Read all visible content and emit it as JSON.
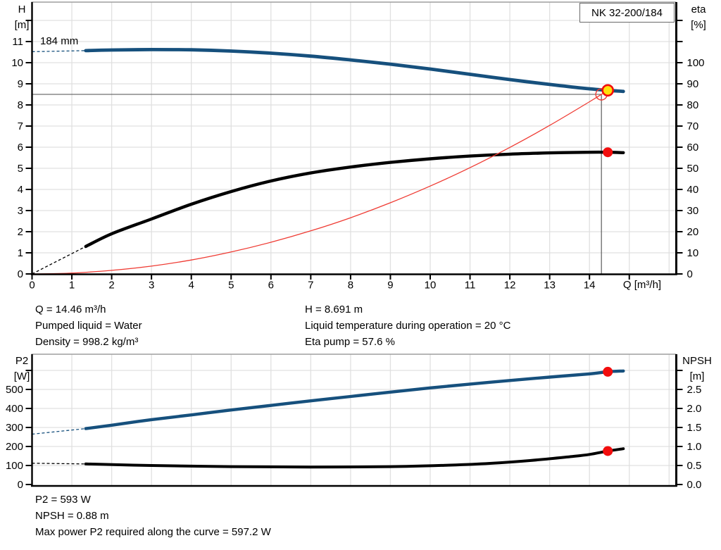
{
  "pump_title": "NK 32-200/184",
  "colors": {
    "blue": "#16507d",
    "black": "#000000",
    "red": "#ef3b33",
    "marker_red": "#f20d0d",
    "marker_yellow": "#ffe10a",
    "grid": "#e0e0e0",
    "frame": "#9e9e9e",
    "crosshair": "#4d4d4d",
    "axis": "#000000"
  },
  "info_top": {
    "left": [
      "Q = 14.46 m³/h",
      "Pumped liquid = Water",
      "Density = 998.2 kg/m³"
    ],
    "right": [
      "H = 8.691 m",
      "Liquid temperature during operation = 20 °C",
      "Eta pump = 57.6 %"
    ]
  },
  "info_bottom": [
    "P2 = 593 W",
    "NPSH = 0.88 m",
    "Max power P2 required along the curve = 597.2 W"
  ],
  "chart_data": [
    {
      "type": "line",
      "name": "head-eta-chart",
      "title": "NK 32-200/184",
      "annotation": "184 mm",
      "xlabel": "Q [m³/h]",
      "ylabel_left": [
        "H",
        "[m]"
      ],
      "ylabel_right": [
        "eta",
        "[%]"
      ],
      "x_range": [
        0,
        16.2
      ],
      "y_left_range": [
        0,
        12.9
      ],
      "y_right_range": [
        0,
        129
      ],
      "x_grid_values": [
        1,
        2,
        3,
        4,
        5,
        6,
        7,
        8,
        9,
        10,
        11,
        12,
        13,
        14,
        15,
        16
      ],
      "x_ticks_values": [
        0,
        1,
        2,
        3,
        4,
        5,
        6,
        7,
        8,
        9,
        10,
        11,
        12,
        13,
        14,
        15
      ],
      "x_ticks_labels": [
        "0",
        "1",
        "2",
        "3",
        "4",
        "5",
        "6",
        "7",
        "8",
        "9",
        "10",
        "11",
        "12",
        "13",
        "14",
        ""
      ],
      "y_left_ticks_values": [
        0,
        1,
        2,
        3,
        4,
        5,
        6,
        7,
        8,
        9,
        10,
        11,
        12
      ],
      "y_left_ticks_labels": [
        "0",
        "1",
        "2",
        "3",
        "4",
        "5",
        "6",
        "7",
        "8",
        "9",
        "10",
        "11",
        ""
      ],
      "y_right_ticks_values": [
        0,
        10,
        20,
        30,
        40,
        50,
        60,
        70,
        80,
        90,
        100,
        110,
        120
      ],
      "y_right_ticks_labels": [
        "0",
        "10",
        "20",
        "30",
        "40",
        "50",
        "60",
        "70",
        "80",
        "90",
        "100",
        "",
        ""
      ],
      "crosshair": {
        "q": 14.3,
        "value": 8.5
      },
      "series": [
        {
          "name": "eta-curve",
          "axis": "right",
          "color": "black",
          "width": 4.4,
          "dash": [
            [
              0,
              0
            ],
            [
              1.35,
              13
            ]
          ],
          "points": [
            [
              1.35,
              13
            ],
            [
              2,
              19
            ],
            [
              3,
              26
            ],
            [
              4,
              33
            ],
            [
              5,
              39
            ],
            [
              6,
              44
            ],
            [
              7,
              47.8
            ],
            [
              8,
              50.6
            ],
            [
              9,
              52.8
            ],
            [
              10,
              54.5
            ],
            [
              11,
              55.8
            ],
            [
              12,
              56.7
            ],
            [
              13,
              57.3
            ],
            [
              14,
              57.6
            ],
            [
              14.46,
              57.6
            ],
            [
              14.85,
              57.4
            ]
          ]
        },
        {
          "name": "system-curve",
          "axis": "left",
          "color": "red",
          "width": 1.3,
          "points": [
            [
              0,
              0
            ],
            [
              1,
              0.04
            ],
            [
              2,
              0.17
            ],
            [
              3,
              0.37
            ],
            [
              4,
              0.66
            ],
            [
              5,
              1.04
            ],
            [
              6,
              1.5
            ],
            [
              7,
              2.04
            ],
            [
              8,
              2.66
            ],
            [
              9,
              3.37
            ],
            [
              10,
              4.16
            ],
            [
              11,
              5.03
            ],
            [
              12,
              5.99
            ],
            [
              13,
              7.03
            ],
            [
              14,
              8.15
            ],
            [
              14.46,
              8.69
            ]
          ]
        },
        {
          "name": "head-curve",
          "axis": "left",
          "color": "blue",
          "width": 4.8,
          "dash": [
            [
              0,
              10.52
            ],
            [
              1.35,
              10.57
            ]
          ],
          "points": [
            [
              1.35,
              10.57
            ],
            [
              2,
              10.6
            ],
            [
              3,
              10.62
            ],
            [
              4,
              10.61
            ],
            [
              5,
              10.55
            ],
            [
              6,
              10.45
            ],
            [
              7,
              10.31
            ],
            [
              8,
              10.13
            ],
            [
              9,
              9.93
            ],
            [
              10,
              9.7
            ],
            [
              11,
              9.45
            ],
            [
              12,
              9.2
            ],
            [
              13,
              8.97
            ],
            [
              13.8,
              8.8
            ],
            [
              14.46,
              8.691
            ],
            [
              14.85,
              8.64
            ]
          ]
        }
      ],
      "markers": [
        {
          "name": "requested-duty-point",
          "q": 14.3,
          "value": 8.5,
          "axis": "left",
          "style": "open",
          "stroke": "red",
          "r": 8
        },
        {
          "name": "duty-point",
          "q": 14.46,
          "value": 8.691,
          "axis": "left",
          "style": "filled",
          "fill": "marker_yellow",
          "stroke": "marker_red",
          "r": 7.5
        },
        {
          "name": "eta-duty-point",
          "q": 14.46,
          "value": 57.6,
          "axis": "right",
          "style": "filled",
          "fill": "marker_red",
          "r": 7
        }
      ]
    },
    {
      "type": "line",
      "name": "power-npsh-chart",
      "xlabel": "",
      "ylabel_left": [
        "P2",
        "[W]"
      ],
      "ylabel_right": [
        "NPSH",
        "[m]"
      ],
      "x_range": [
        0,
        16.2
      ],
      "y_left_range": [
        0,
        685
      ],
      "y_right_range": [
        0,
        3.42
      ],
      "x_grid_values": [
        1,
        2,
        3,
        4,
        5,
        6,
        7,
        8,
        9,
        10,
        11,
        12,
        13,
        14,
        15,
        16
      ],
      "x_ticks_values": [],
      "x_ticks_labels": [],
      "y_left_ticks_values": [
        0,
        100,
        200,
        300,
        400,
        500,
        600
      ],
      "y_left_ticks_labels": [
        "0",
        "100",
        "200",
        "300",
        "400",
        "500",
        ""
      ],
      "y_right_ticks_values": [
        0,
        0.5,
        1,
        1.5,
        2,
        2.5,
        3
      ],
      "y_right_ticks_labels": [
        "0.0",
        "0.5",
        "1.0",
        "1.5",
        "2.0",
        "2.5",
        ""
      ],
      "series": [
        {
          "name": "npsh-curve",
          "axis": "right",
          "color": "black",
          "width": 4,
          "dash": [
            [
              0,
              0.56
            ],
            [
              1.35,
              0.54
            ]
          ],
          "points": [
            [
              1.35,
              0.54
            ],
            [
              3,
              0.5
            ],
            [
              5,
              0.47
            ],
            [
              7,
              0.46
            ],
            [
              9,
              0.47
            ],
            [
              10.5,
              0.51
            ],
            [
              11.5,
              0.555
            ],
            [
              12.5,
              0.63
            ],
            [
              13.5,
              0.73
            ],
            [
              14,
              0.79
            ],
            [
              14.46,
              0.88
            ],
            [
              14.85,
              0.94
            ]
          ]
        },
        {
          "name": "p2-curve",
          "axis": "left",
          "color": "blue",
          "width": 4.4,
          "dash": [
            [
              0,
              265
            ],
            [
              1.35,
              294
            ]
          ],
          "points": [
            [
              1.35,
              294
            ],
            [
              2,
              312
            ],
            [
              3,
              341
            ],
            [
              4,
              366
            ],
            [
              5,
              392
            ],
            [
              6,
              416
            ],
            [
              7,
              440
            ],
            [
              8,
              463
            ],
            [
              9,
              486
            ],
            [
              10,
              508
            ],
            [
              11,
              528
            ],
            [
              12,
              547
            ],
            [
              13,
              565
            ],
            [
              14,
              582
            ],
            [
              14.46,
              593
            ],
            [
              14.85,
              597
            ]
          ]
        }
      ],
      "markers": [
        {
          "name": "p2-duty-point",
          "q": 14.46,
          "value": 593,
          "axis": "left",
          "style": "filled",
          "fill": "marker_red",
          "r": 7
        },
        {
          "name": "npsh-duty-point",
          "q": 14.46,
          "value": 0.88,
          "axis": "right",
          "style": "filled",
          "fill": "marker_red",
          "r": 7
        }
      ]
    }
  ]
}
